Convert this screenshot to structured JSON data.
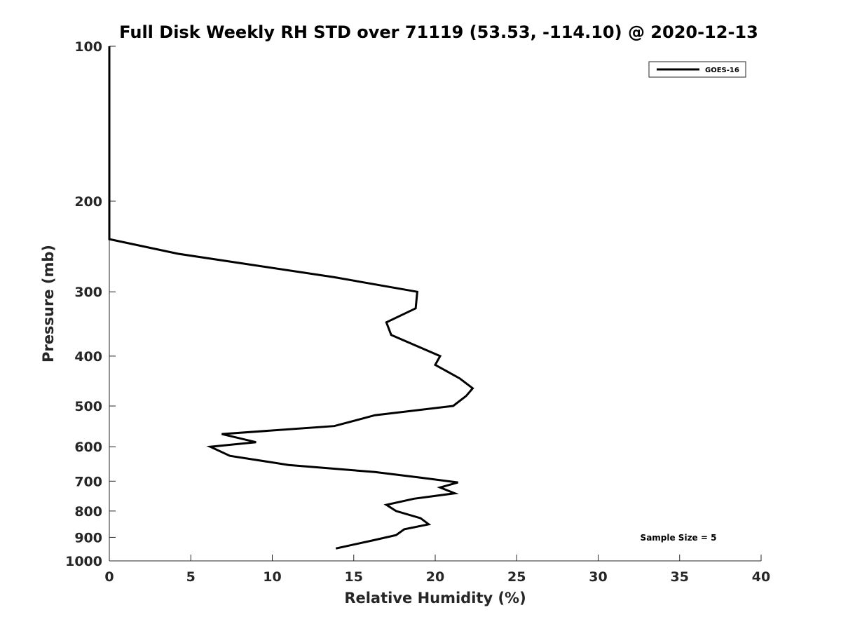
{
  "chart_data": {
    "type": "line",
    "title": "Full Disk Weekly RH STD over 71119 (53.53, -114.10) @ 2020-12-13",
    "xlabel": "Relative Humidity (%)",
    "ylabel": "Pressure (mb)",
    "xlim": [
      0,
      40
    ],
    "ylim": [
      100,
      1000
    ],
    "y_scale": "log",
    "y_reversed": true,
    "xticks": [
      0,
      5,
      10,
      15,
      20,
      25,
      30,
      35,
      40
    ],
    "yticks": [
      100,
      200,
      300,
      400,
      500,
      600,
      700,
      800,
      900,
      1000
    ],
    "grid": false,
    "legend_position": "top-right",
    "annotation": "Sample Size = 5",
    "series": [
      {
        "name": "GOES-16",
        "color": "#000000",
        "points": [
          {
            "p": 100,
            "rh": 0
          },
          {
            "p": 150,
            "rh": 0
          },
          {
            "p": 200,
            "rh": 0
          },
          {
            "p": 237,
            "rh": 0
          },
          {
            "p": 253,
            "rh": 4.2
          },
          {
            "p": 281,
            "rh": 13.8
          },
          {
            "p": 300,
            "rh": 18.9
          },
          {
            "p": 323,
            "rh": 18.8
          },
          {
            "p": 344,
            "rh": 17.0
          },
          {
            "p": 364,
            "rh": 17.3
          },
          {
            "p": 400,
            "rh": 20.3
          },
          {
            "p": 416,
            "rh": 20.0
          },
          {
            "p": 442,
            "rh": 21.5
          },
          {
            "p": 462,
            "rh": 22.3
          },
          {
            "p": 478,
            "rh": 21.9
          },
          {
            "p": 500,
            "rh": 21.1
          },
          {
            "p": 521,
            "rh": 16.3
          },
          {
            "p": 547,
            "rh": 13.8
          },
          {
            "p": 567,
            "rh": 6.9
          },
          {
            "p": 588,
            "rh": 9.0
          },
          {
            "p": 600,
            "rh": 6.2
          },
          {
            "p": 625,
            "rh": 7.4
          },
          {
            "p": 651,
            "rh": 11.0
          },
          {
            "p": 672,
            "rh": 16.3
          },
          {
            "p": 689,
            "rh": 19.1
          },
          {
            "p": 704,
            "rh": 21.4
          },
          {
            "p": 720,
            "rh": 20.3
          },
          {
            "p": 739,
            "rh": 21.2
          },
          {
            "p": 757,
            "rh": 18.7
          },
          {
            "p": 778,
            "rh": 17.0
          },
          {
            "p": 800,
            "rh": 17.6
          },
          {
            "p": 826,
            "rh": 19.1
          },
          {
            "p": 849,
            "rh": 19.6
          },
          {
            "p": 868,
            "rh": 18.1
          },
          {
            "p": 891,
            "rh": 17.6
          },
          {
            "p": 912,
            "rh": 16.2
          },
          {
            "p": 946,
            "rh": 13.9
          }
        ]
      }
    ]
  }
}
